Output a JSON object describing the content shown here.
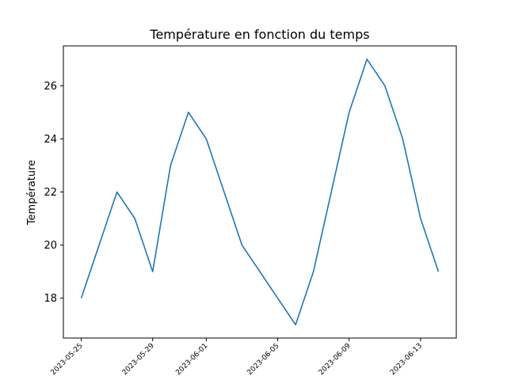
{
  "chart_data": {
    "type": "line",
    "title": "Température en fonction du temps",
    "xlabel": "",
    "ylabel": "Température",
    "x": [
      "2023-05-25",
      "2023-05-27",
      "2023-05-28",
      "2023-05-29",
      "2023-05-30",
      "2023-05-31",
      "2023-06-01",
      "2023-06-03",
      "2023-06-06",
      "2023-06-07",
      "2023-06-09",
      "2023-06-10",
      "2023-06-11",
      "2023-06-12",
      "2023-06-13",
      "2023-06-14"
    ],
    "series": [
      {
        "name": "",
        "color": "#1f77b4",
        "values": [
          18,
          22,
          21,
          19,
          23,
          25,
          24,
          20,
          17,
          19,
          25,
          27,
          26,
          24,
          21,
          19
        ]
      }
    ],
    "xlim": [
      "2023-05-24",
      "2023-06-15"
    ],
    "ylim": [
      16.5,
      27.5
    ],
    "x_ticks": [
      "2023-05-25",
      "2023-05-29",
      "2023-06-01",
      "2023-06-05",
      "2023-06-09",
      "2023-06-13"
    ],
    "y_ticks": [
      18,
      20,
      22,
      24,
      26
    ],
    "grid": false,
    "legend": false
  }
}
